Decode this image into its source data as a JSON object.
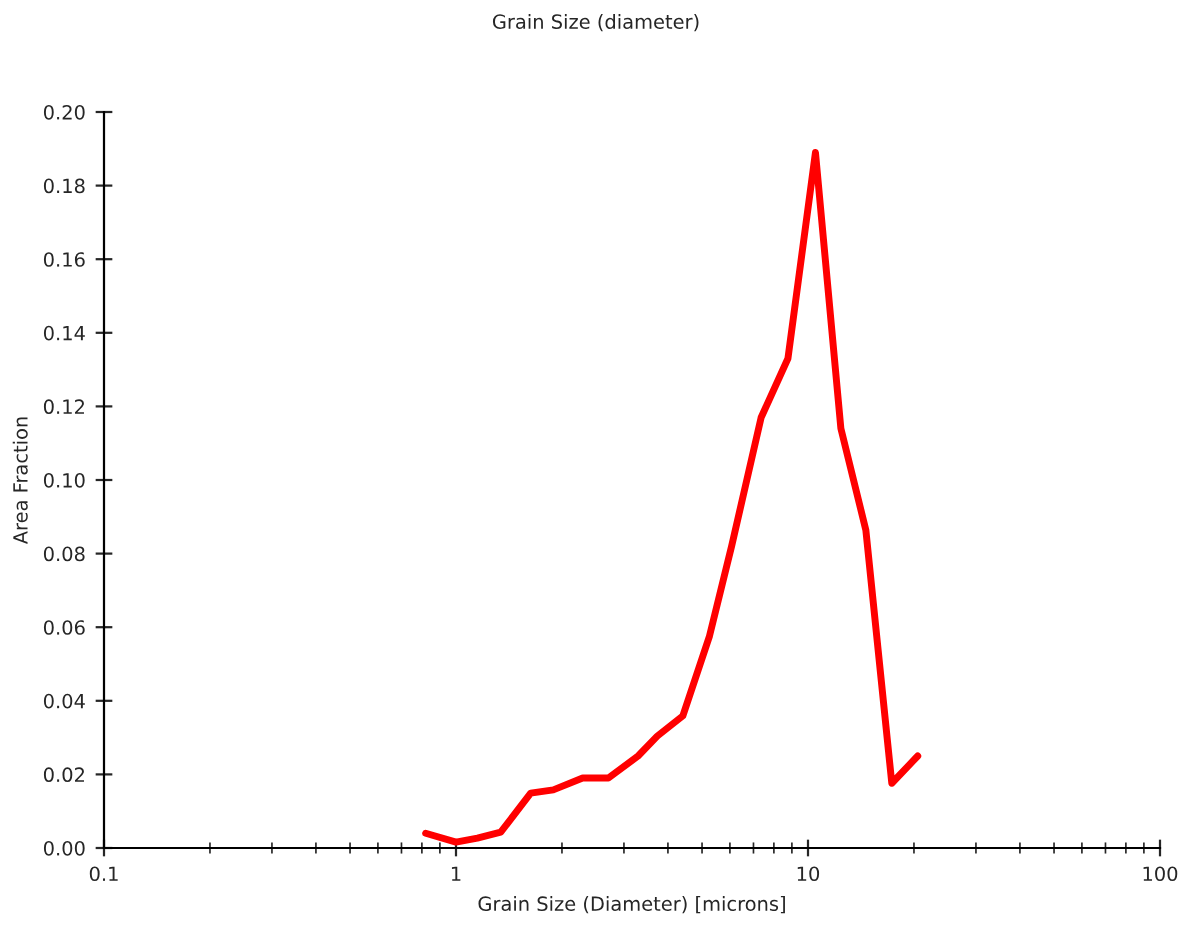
{
  "chart_data": {
    "type": "line",
    "title": "Grain Size (diameter)",
    "xlabel": "Grain Size (Diameter) [microns]",
    "ylabel": "Area Fraction",
    "log": "x",
    "xlim": [
      0.1,
      100
    ],
    "xticks": [
      0.1,
      1,
      10,
      100
    ],
    "ylim": [
      0,
      0.2
    ],
    "yticks": [
      {
        "value": 0,
        "label": "0.00"
      },
      {
        "value": 0.02,
        "label": "0.02"
      },
      {
        "value": 0.04,
        "label": "0.04"
      },
      {
        "value": 0.06,
        "label": "0.06"
      },
      {
        "value": 0.08,
        "label": "0.08"
      },
      {
        "value": 0.1,
        "label": "0.10"
      },
      {
        "value": 0.12,
        "label": "0.12"
      },
      {
        "value": 0.14,
        "label": "0.14"
      },
      {
        "value": 0.16,
        "label": "0.16"
      },
      {
        "value": 0.18,
        "label": "0.18"
      },
      {
        "value": 0.2,
        "label": "0.20"
      }
    ],
    "grid": false,
    "legend": false,
    "marker": "none",
    "line_style": "solid",
    "series": [
      {
        "color": "#ff0000",
        "x": [
          0.82,
          1.0,
          1.15,
          1.34,
          1.63,
          1.89,
          2.29,
          2.71,
          3.29,
          3.73,
          4.41,
          5.25,
          6.07,
          7.36,
          8.77,
          10.5,
          12.4,
          14.6,
          17.3,
          20.5
        ],
        "values": [
          0.004,
          0.0016,
          0.0027,
          0.0043,
          0.0149,
          0.0158,
          0.019,
          0.019,
          0.025,
          0.0304,
          0.0359,
          0.0576,
          0.0821,
          0.117,
          0.133,
          0.189,
          0.114,
          0.0864,
          0.0176,
          0.025
        ]
      }
    ]
  }
}
